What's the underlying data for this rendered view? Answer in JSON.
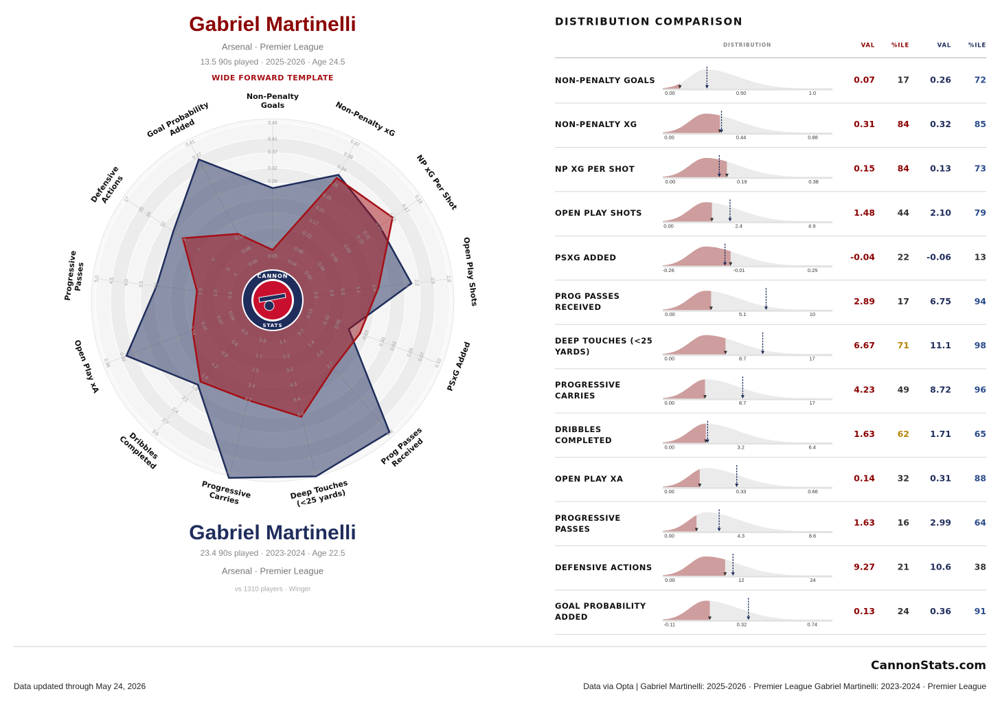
{
  "header": {
    "player": "Gabriel Martinelli",
    "team": "Arsenal · Premier League",
    "details": "13.5 90s played · 2025-2026 · Age 24.5",
    "template": "WIDE FORWARD TEMPLATE"
  },
  "comparison": {
    "player": "Gabriel Martinelli",
    "details": "23.4 90s played · 2023-2024 · Age 22.5",
    "team": "Arsenal · Premier League",
    "pool": "vs 1310 players · Winger"
  },
  "logo": {
    "top": "CANNON",
    "bottom": "STATS"
  },
  "footer": {
    "brand": "CannonStats.com",
    "updated": "Data updated through May 24, 2026",
    "source": "Data via Opta | Gabriel Martinelli: 2025-2026 · Premier League  Gabriel Martinelli: 2023-2024 · Premier League"
  },
  "chart_data": [
    {
      "type": "radar",
      "axes": [
        {
          "label": "Non-Penalty Goals",
          "lim": [
            0,
            0.46
          ],
          "ticks": [
            0.05,
            0.09,
            0.14,
            0.18,
            0.23,
            0.28,
            0.32,
            0.37,
            0.41,
            0.46
          ]
        },
        {
          "label": "Non-Penalty xG",
          "lim": [
            0,
            0.42
          ],
          "ticks": [
            0.04,
            0.08,
            0.13,
            0.17,
            0.21,
            0.25,
            0.29,
            0.34,
            0.38,
            0.42
          ]
        },
        {
          "label": "NP xG Per Shot",
          "lim": [
            0,
            0.19
          ],
          "ticks": [
            0.02,
            0.04,
            0.06,
            0.08,
            {
              "value": 0.1,
              "label": "0.10"
            },
            0.11,
            0.13,
            0.15,
            0.17,
            0.19
          ]
        },
        {
          "label": "Open Play Shots",
          "lim": [
            0,
            2.8
          ],
          "ticks": [
            0.3,
            0.6,
            0.8,
            1.1,
            1.4,
            1.7,
            {
              "value": 2,
              "label": "2.0"
            },
            2.2,
            2.5,
            2.8
          ]
        },
        {
          "label": "PSxG Added",
          "lim": [
            -0.15,
            0.1
          ],
          "ticks": [
            -0.13,
            {
              "value": -0.1,
              "label": "-0.10"
            },
            -0.08,
            -0.05,
            -0.03,
            {
              "value": 0,
              "label": "0.00"
            },
            0.02,
            0.05,
            0.07,
            {
              "value": 0.1,
              "label": "0.10"
            }
          ]
        },
        {
          "label": "Prog Passes Received",
          "lim": [
            0,
            6.8
          ],
          "ticks": [
            0.7,
            1.4,
            {
              "value": 2,
              "label": "2.0"
            },
            2.7,
            3.4,
            4.1,
            4.8,
            5.4,
            6.1,
            6.8
          ]
        },
        {
          "label": "Deep Touches (<25 yards)",
          "lim": [
            0,
            10.8
          ],
          "ticks": [
            1.1,
            2.2,
            3.2,
            4.3,
            5.4,
            6.5,
            7.6,
            8.6,
            9.7,
            10.8
          ]
        },
        {
          "label": "Progressive Carries",
          "lim": [
            0,
            8.4
          ],
          "ticks": [
            0.8,
            1.7,
            2.5,
            3.4,
            4.2,
            {
              "value": 5,
              "label": "5.0"
            },
            5.9,
            6.7,
            7.6,
            8.4
          ]
        },
        {
          "label": "Dribbles Completed",
          "lim": [
            0,
            3
          ],
          "ticks": [
            0.3,
            0.6,
            0.9,
            1.2,
            1.5,
            1.8,
            2.1,
            2.4,
            2.7,
            {
              "value": 3,
              "label": "3.0"
            }
          ]
        },
        {
          "label": "Open Play xA",
          "lim": [
            0,
            0.36
          ],
          "ticks": [
            0.04,
            0.07,
            0.11,
            0.14,
            0.18,
            0.22,
            0.25,
            0.29,
            0.32,
            0.36
          ]
        },
        {
          "label": "Progressive Passes",
          "lim": [
            0,
            5
          ],
          "ticks": [
            0.5,
            {
              "value": 1,
              "label": "1.0"
            },
            1.5,
            {
              "value": 2,
              "label": "2.0"
            },
            2.5,
            {
              "value": 3,
              "label": "3.0"
            },
            3.5,
            {
              "value": 4,
              "label": "4.0"
            },
            4.5,
            {
              "value": 5,
              "label": "5.0"
            }
          ]
        },
        {
          "label": "Defensive Actions",
          "lim": [
            0,
            17
          ],
          "ticks": [
            2,
            3,
            5,
            7,
            9,
            10,
            12,
            14,
            15,
            17
          ]
        },
        {
          "label": "Goal Probability Added",
          "lim": [
            0,
            0.41
          ],
          "ticks": [
            0.04,
            0.08,
            0.12,
            0.16,
            0.21,
            0.25,
            0.29,
            0.33,
            0.37,
            0.41
          ]
        }
      ],
      "series": [
        {
          "color": "#1f2d5c",
          "values": [
            0.26,
            0.32,
            0.13,
            2.1,
            -0.06,
            6.75,
            11.1,
            8.72,
            1.71,
            0.31,
            2.99,
            10.6,
            0.36
          ]
        },
        {
          "color": "#a50f15",
          "values": [
            0.07,
            0.31,
            0.15,
            1.48,
            -0.04,
            2.89,
            6.67,
            4.23,
            1.63,
            0.14,
            1.63,
            9.27,
            0.13
          ]
        }
      ]
    },
    {
      "type": "distribution",
      "title": "DISTRIBUTION COMPARISON",
      "columns": [
        "DISTRIBUTION",
        "VAL",
        "%ILE",
        "VAL",
        "%ILE"
      ],
      "categories": [
        "NON-PENALTY GOALS",
        "NON-PENALTY XG",
        "NP XG PER SHOT",
        "OPEN PLAY SHOTS",
        "PSXG ADDED",
        "PROG PASSES RECEIVED",
        "DEEP TOUCHES (<25 YARDS)",
        "PROGRESSIVE CARRIES",
        "DRIBBLES COMPLETED",
        "OPEN PLAY XA",
        "PROGRESSIVE PASSES",
        "DEFENSIVE ACTIONS",
        "GOAL PROBABILITY ADDED"
      ],
      "rows": [
        {
          "xlim": [
            -0.05,
            1.14
          ],
          "xticks": [
            {
              "value": 0,
              "label": "0.00"
            },
            {
              "value": 0.5,
              "label": "0.50"
            },
            {
              "value": 1,
              "label": "1.0"
            }
          ]
        },
        {
          "xlim": [
            -0.04,
            1.0
          ],
          "xticks": [
            {
              "value": 0,
              "label": "0.00"
            },
            0.44,
            0.88
          ]
        },
        {
          "xlim": [
            -0.02,
            0.43
          ],
          "xticks": [
            {
              "value": 0,
              "label": "0.00"
            },
            0.19,
            0.38
          ]
        },
        {
          "xlim": [
            -0.2,
            5.6
          ],
          "xticks": [
            {
              "value": 0,
              "label": "0.00"
            },
            2.4,
            4.9
          ]
        },
        {
          "xlim": [
            -0.28,
            0.32
          ],
          "xticks": [
            -0.26,
            -0.01,
            0.25
          ]
        },
        {
          "xlim": [
            -0.5,
            11.4
          ],
          "xticks": [
            {
              "value": 0,
              "label": "0.00"
            },
            5.1,
            10
          ]
        },
        {
          "xlim": [
            -0.8,
            19.4
          ],
          "xticks": [
            {
              "value": 0,
              "label": "0.00"
            },
            8.7,
            17
          ]
        },
        {
          "xlim": [
            -0.8,
            19.4
          ],
          "xticks": [
            {
              "value": 0,
              "label": "0.00"
            },
            8.7,
            17
          ]
        },
        {
          "xlim": [
            -0.3,
            7.3
          ],
          "xticks": [
            {
              "value": 0,
              "label": "0.00"
            },
            3.2,
            6.4
          ]
        },
        {
          "xlim": [
            -0.03,
            0.75
          ],
          "xticks": [
            {
              "value": 0,
              "label": "0.00"
            },
            0.33,
            0.66
          ]
        },
        {
          "xlim": [
            -0.4,
            9.8
          ],
          "xticks": [
            {
              "value": 0,
              "label": "0.00"
            },
            4.3,
            8.6
          ]
        },
        {
          "xlim": [
            -1.2,
            27.3
          ],
          "xticks": [
            {
              "value": 0,
              "label": "0.00"
            },
            12,
            24
          ]
        },
        {
          "xlim": [
            -0.15,
            0.86
          ],
          "xticks": [
            -0.11,
            0.32,
            0.74
          ]
        }
      ],
      "series": [
        {
          "color": "#8b0000",
          "values": [
            0.07,
            0.31,
            0.15,
            1.48,
            -0.04,
            2.89,
            6.67,
            4.23,
            1.63,
            0.14,
            1.63,
            9.27,
            0.13
          ],
          "percentiles": [
            17,
            84,
            84,
            44,
            22,
            17,
            71,
            49,
            62,
            32,
            16,
            21,
            24
          ]
        },
        {
          "color": "#1f2d5c",
          "values": [
            0.26,
            0.32,
            0.13,
            2.1,
            -0.06,
            6.75,
            11.1,
            8.72,
            1.71,
            0.31,
            2.99,
            10.6,
            0.36
          ],
          "value_labels": [
            "0.26",
            "0.32",
            "0.13",
            "2.10",
            "-0.06",
            "6.75",
            "11.1",
            "8.72",
            "1.71",
            "0.31",
            "2.99",
            "10.6",
            "0.36"
          ],
          "percentiles": [
            72,
            85,
            73,
            79,
            13,
            94,
            98,
            96,
            65,
            88,
            64,
            38,
            91
          ]
        }
      ]
    }
  ]
}
